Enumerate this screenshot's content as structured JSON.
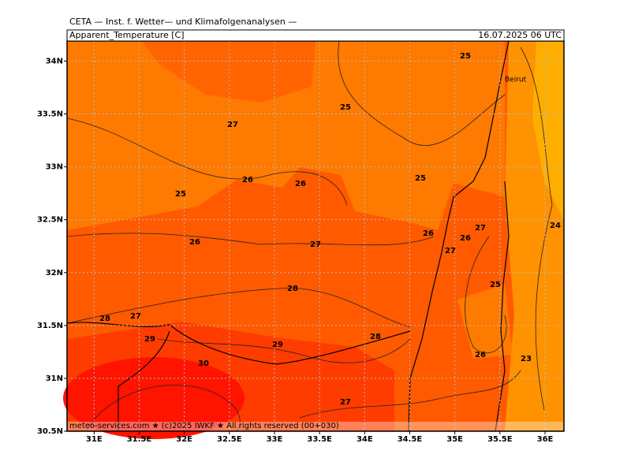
{
  "header": "CETA — Inst. f. Wetter— und Klimafolgenanalysen —",
  "title": "Apparent_Temperature [C]",
  "valid_time": "16.07.2025 06 UTC",
  "footer": "meteo-services.com ★ (c)2025 IWKF ★ All rights reserved (00+030)",
  "city": "Beirut",
  "lonlim": [
    30.7,
    36.21
  ],
  "latlim": [
    30.5,
    34.19
  ],
  "lon_ticks": [
    {
      "value": 31,
      "label": "31E"
    },
    {
      "value": 31.5,
      "label": "31.5E"
    },
    {
      "value": 32,
      "label": "32E"
    },
    {
      "value": 32.5,
      "label": "32.5E"
    },
    {
      "value": 33,
      "label": "33E"
    },
    {
      "value": 33.5,
      "label": "33.5E"
    },
    {
      "value": 34,
      "label": "34E"
    },
    {
      "value": 34.5,
      "label": "34.5E"
    },
    {
      "value": 35,
      "label": "35E"
    },
    {
      "value": 35.5,
      "label": "35.5E"
    },
    {
      "value": 36,
      "label": "36E"
    }
  ],
  "lat_ticks": [
    {
      "value": 30.5,
      "label": "30.5N"
    },
    {
      "value": 31,
      "label": "31N"
    },
    {
      "value": 31.5,
      "label": "31.5N"
    },
    {
      "value": 32,
      "label": "32N"
    },
    {
      "value": 32.5,
      "label": "32.5N"
    },
    {
      "value": 33,
      "label": "33N"
    },
    {
      "value": 33.5,
      "label": "33.5N"
    },
    {
      "value": 34,
      "label": "34N"
    }
  ],
  "contour_labels": [
    "25",
    "25",
    "27",
    "25",
    "26",
    "26",
    "25",
    "26",
    "27",
    "26",
    "27",
    "26",
    "27",
    "24",
    "28",
    "25",
    "28",
    "27",
    "29",
    "28",
    "29",
    "26",
    "23",
    "30",
    "27"
  ]
}
